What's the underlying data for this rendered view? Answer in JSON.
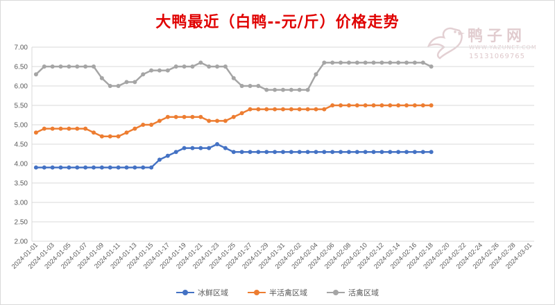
{
  "title": "大鸭最近（白鸭--元/斤）价格走势",
  "title_color": "#e00000",
  "watermark": {
    "name": "鸭子网",
    "url": "WWW.YAZUNET.COM",
    "phone": "15131069765",
    "color": "#c9a3a8",
    "logo_icon": "duck-icon"
  },
  "chart_data": {
    "type": "line",
    "title": "大鸭最近（白鸭--元/斤）价格走势",
    "xlabel": "",
    "ylabel": "",
    "ylim": [
      2.0,
      7.0
    ],
    "ytick_step": 0.5,
    "y_tick_labels": [
      "2.00",
      "2.50",
      "3.00",
      "3.50",
      "4.00",
      "4.50",
      "5.00",
      "5.50",
      "6.00",
      "6.50",
      "7.00"
    ],
    "x_start": "2024-01-01",
    "x_end": "2024-03-02",
    "x_tick_labels": [
      "2024-01-01",
      "2024-01-03",
      "2024-01-05",
      "2024-01-07",
      "2024-01-09",
      "2024-01-11",
      "2024-01-13",
      "2024-01-15",
      "2024-01-17",
      "2024-01-19",
      "2024-01-21",
      "2024-01-23",
      "2024-01-25",
      "2024-01-27",
      "2024-01-29",
      "2024-01-31",
      "2024-02-02",
      "2024-02-04",
      "2024-02-06",
      "2024-02-08",
      "2024-02-10",
      "2024-02-12",
      "2024-02-14",
      "2024-02-16",
      "2024-02-18",
      "2024-02-20",
      "2024-02-22",
      "2024-02-24",
      "2024-02-26",
      "2024-02-28",
      "2024-03-01"
    ],
    "grid": "horizontal",
    "legend_position": "bottom",
    "series": [
      {
        "name": "冰鲜区域",
        "color": "#4472c4",
        "values": [
          3.9,
          3.9,
          3.9,
          3.9,
          3.9,
          3.9,
          3.9,
          3.9,
          3.9,
          3.9,
          3.9,
          3.9,
          3.9,
          3.9,
          3.9,
          4.1,
          4.2,
          4.3,
          4.4,
          4.4,
          4.4,
          4.4,
          4.5,
          4.4,
          4.3,
          4.3,
          4.3,
          4.3,
          4.3,
          4.3,
          4.3,
          4.3,
          4.3,
          4.3,
          4.3,
          4.3,
          4.3,
          4.3,
          4.3,
          4.3,
          4.3,
          4.3,
          4.3,
          4.3,
          4.3,
          4.3,
          4.3,
          4.3,
          4.3
        ]
      },
      {
        "name": "半活禽区域",
        "color": "#ed7d31",
        "values": [
          4.8,
          4.9,
          4.9,
          4.9,
          4.9,
          4.9,
          4.9,
          4.8,
          4.7,
          4.7,
          4.7,
          4.8,
          4.9,
          5.0,
          5.0,
          5.1,
          5.2,
          5.2,
          5.2,
          5.2,
          5.2,
          5.1,
          5.1,
          5.1,
          5.2,
          5.3,
          5.4,
          5.4,
          5.4,
          5.4,
          5.4,
          5.4,
          5.4,
          5.4,
          5.4,
          5.4,
          5.5,
          5.5,
          5.5,
          5.5,
          5.5,
          5.5,
          5.5,
          5.5,
          5.5,
          5.5,
          5.5,
          5.5,
          5.5
        ]
      },
      {
        "name": "活禽区域",
        "color": "#a5a5a5",
        "values": [
          6.3,
          6.5,
          6.5,
          6.5,
          6.5,
          6.5,
          6.5,
          6.5,
          6.2,
          6.0,
          6.0,
          6.1,
          6.1,
          6.3,
          6.4,
          6.4,
          6.4,
          6.5,
          6.5,
          6.5,
          6.6,
          6.5,
          6.5,
          6.5,
          6.2,
          6.0,
          6.0,
          6.0,
          5.9,
          5.9,
          5.9,
          5.9,
          5.9,
          5.9,
          6.3,
          6.6,
          6.6,
          6.6,
          6.6,
          6.6,
          6.6,
          6.6,
          6.6,
          6.6,
          6.6,
          6.6,
          6.6,
          6.6,
          6.5
        ]
      }
    ]
  }
}
